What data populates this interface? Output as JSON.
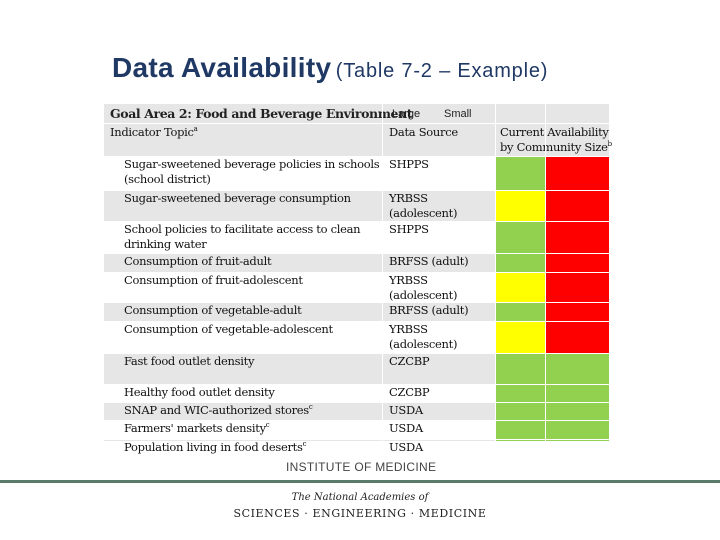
{
  "title": {
    "main": "Data Availability",
    "sub": "(Table 7-2 – Example)"
  },
  "table": {
    "goal_area": "Goal Area 2: Food and Beverage Environment",
    "size_labels": {
      "large": "Large",
      "small": "Small"
    },
    "headers": {
      "indicator": "Indicator Topic",
      "indicator_note": "a",
      "source": "Data Source",
      "availability_line1": "Current Availability",
      "availability_line2": "by Community Size",
      "availability_note": "b"
    },
    "rows": [
      {
        "indicator": [
          "Sugar-sweetened beverage policies in schools",
          "(school district)"
        ],
        "source": [
          "SHPPS"
        ],
        "large": "green",
        "small": "red"
      },
      {
        "indicator": [
          "Sugar-sweetened beverage consumption"
        ],
        "source": [
          "YRBSS",
          "(adolescent)"
        ],
        "large": "yellow",
        "small": "red"
      },
      {
        "indicator": [
          "School policies to facilitate access to clean",
          "drinking water"
        ],
        "source": [
          "SHPPS"
        ],
        "large": "green",
        "small": "red"
      },
      {
        "indicator": [
          "Consumption of fruit-adult"
        ],
        "source": [
          "BRFSS (adult)"
        ],
        "large": "green",
        "small": "red"
      },
      {
        "indicator": [
          "Consumption of fruit-adolescent"
        ],
        "source": [
          "YRBSS",
          "(adolescent)"
        ],
        "large": "yellow",
        "small": "red"
      },
      {
        "indicator": [
          "Consumption of vegetable-adult"
        ],
        "source": [
          "BRFSS (adult)"
        ],
        "large": "green",
        "small": "red"
      },
      {
        "indicator": [
          "Consumption of vegetable-adolescent"
        ],
        "source": [
          "YRBSS",
          "(adolescent)"
        ],
        "large": "yellow",
        "small": "red"
      },
      {
        "indicator": [
          "Fast food outlet density"
        ],
        "source": [
          "CZCBP"
        ],
        "large": "green",
        "small": "green"
      },
      {
        "indicator": [
          "Healthy food outlet density"
        ],
        "source": [
          "CZCBP"
        ],
        "large": "green",
        "small": "green"
      },
      {
        "indicator": [
          "SNAP and WIC-authorized stores"
        ],
        "note": "c",
        "source": [
          "USDA"
        ],
        "large": "green",
        "small": "green"
      },
      {
        "indicator": [
          "Farmers' markets density"
        ],
        "note": "c",
        "source": [
          "USDA"
        ],
        "large": "green",
        "small": "green"
      },
      {
        "indicator": [
          "Population living in food deserts"
        ],
        "note": "c",
        "source": [
          "USDA"
        ],
        "large": "green",
        "small": "green"
      }
    ]
  },
  "colors": {
    "green": "#92d050",
    "yellow": "#ffff00",
    "red": "#ff0000",
    "title": "#1f3864"
  },
  "footer": {
    "institute": "INSTITUTE OF MEDICINE",
    "academies_line1": "The National Academies of",
    "academies_line2": "SCIENCES · ENGINEERING · MEDICINE"
  }
}
